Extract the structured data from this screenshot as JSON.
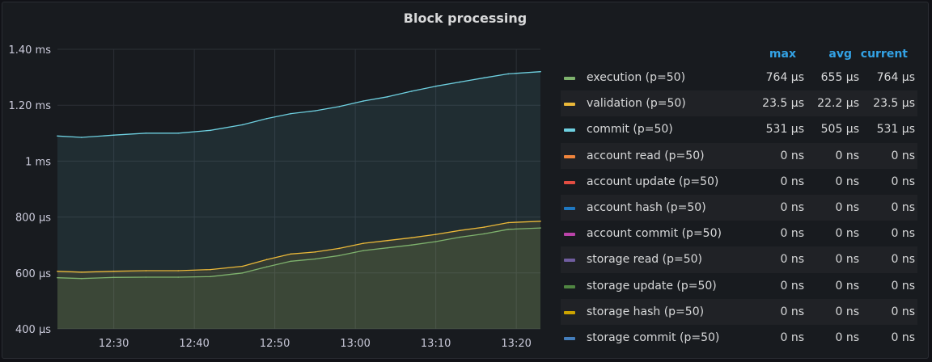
{
  "panel": {
    "title": "Block processing"
  },
  "legend": {
    "headers": {
      "max": "max",
      "avg": "avg",
      "current": "current"
    },
    "rows": [
      {
        "name": "execution (p=50)",
        "color": "#7eb26d",
        "max": "764 µs",
        "avg": "655 µs",
        "current": "764 µs"
      },
      {
        "name": "validation (p=50)",
        "color": "#eab839",
        "max": "23.5 µs",
        "avg": "22.2 µs",
        "current": "23.5 µs"
      },
      {
        "name": "commit (p=50)",
        "color": "#6ed0e0",
        "max": "531 µs",
        "avg": "505 µs",
        "current": "531 µs"
      },
      {
        "name": "account read (p=50)",
        "color": "#ef843c",
        "max": "0 ns",
        "avg": "0 ns",
        "current": "0 ns"
      },
      {
        "name": "account update (p=50)",
        "color": "#e24d42",
        "max": "0 ns",
        "avg": "0 ns",
        "current": "0 ns"
      },
      {
        "name": "account hash (p=50)",
        "color": "#1f78c1",
        "max": "0 ns",
        "avg": "0 ns",
        "current": "0 ns"
      },
      {
        "name": "account commit (p=50)",
        "color": "#ba43a9",
        "max": "0 ns",
        "avg": "0 ns",
        "current": "0 ns"
      },
      {
        "name": "storage read (p=50)",
        "color": "#705da0",
        "max": "0 ns",
        "avg": "0 ns",
        "current": "0 ns"
      },
      {
        "name": "storage update (p=50)",
        "color": "#508642",
        "max": "0 ns",
        "avg": "0 ns",
        "current": "0 ns"
      },
      {
        "name": "storage hash (p=50)",
        "color": "#cca300",
        "max": "0 ns",
        "avg": "0 ns",
        "current": "0 ns"
      },
      {
        "name": "storage commit (p=50)",
        "color": "#447ebc",
        "max": "0 ns",
        "avg": "0 ns",
        "current": "0 ns"
      }
    ]
  },
  "chart_data": {
    "type": "area",
    "title": "Block processing",
    "xlabel": "",
    "ylabel": "",
    "y_unit": "µs",
    "ylim": [
      400,
      1400
    ],
    "xlim": [
      "12:23",
      "13:23"
    ],
    "x_ticks": [
      "12:30",
      "12:40",
      "12:50",
      "13:00",
      "13:10",
      "13:20"
    ],
    "y_ticks": [
      {
        "value": 400,
        "label": "400 µs"
      },
      {
        "value": 600,
        "label": "600 µs"
      },
      {
        "value": 800,
        "label": "800 µs"
      },
      {
        "value": 1000,
        "label": "1 ms"
      },
      {
        "value": 1200,
        "label": "1.20 ms"
      },
      {
        "value": 1400,
        "label": "1.40 ms"
      }
    ],
    "grid": true,
    "legend_position": "right",
    "x": [
      "12:23",
      "12:26",
      "12:30",
      "12:34",
      "12:38",
      "12:42",
      "12:46",
      "12:49",
      "12:52",
      "12:55",
      "12:58",
      "13:01",
      "13:04",
      "13:07",
      "13:10",
      "13:13",
      "13:16",
      "13:19",
      "13:23"
    ],
    "series": [
      {
        "name": "execution (p=50)",
        "color": "#7eb26d",
        "values": [
          583,
          580,
          584,
          585,
          585,
          587,
          600,
          622,
          642,
          650,
          662,
          680,
          690,
          700,
          712,
          728,
          740,
          756,
          761
        ]
      },
      {
        "name": "validation (p=50)",
        "color": "#eab839",
        "values": [
          606,
          603,
          606,
          608,
          608,
          612,
          624,
          648,
          668,
          675,
          688,
          706,
          716,
          726,
          738,
          752,
          764,
          780,
          785
        ]
      },
      {
        "name": "commit (p=50)",
        "color": "#6ed0e0",
        "values": [
          1090,
          1085,
          1093,
          1100,
          1100,
          1110,
          1130,
          1152,
          1170,
          1180,
          1195,
          1215,
          1230,
          1250,
          1268,
          1283,
          1298,
          1312,
          1320
        ]
      }
    ]
  }
}
